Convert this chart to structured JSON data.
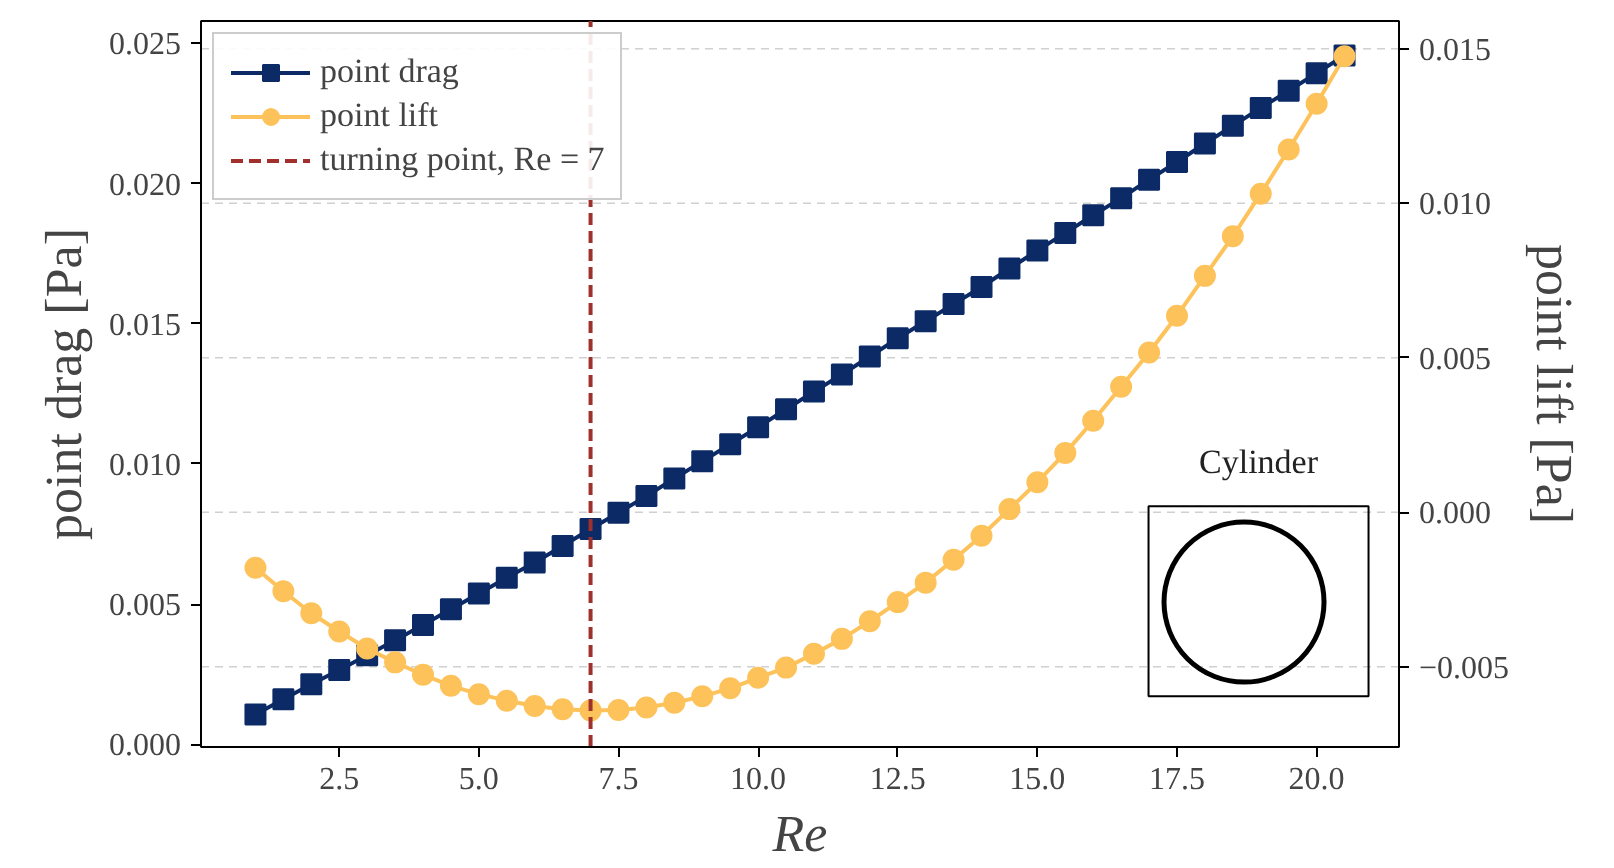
{
  "chart_data": {
    "type": "line",
    "xlabel": "Re",
    "ylabel": "point drag [Pa]",
    "y2label": "point lift [Pa]",
    "x": [
      1.0,
      1.5,
      2.0,
      2.5,
      3.0,
      3.5,
      4.0,
      4.5,
      5.0,
      5.5,
      6.0,
      6.5,
      7.0,
      7.5,
      8.0,
      8.5,
      9.0,
      9.5,
      10.0,
      10.5,
      11.0,
      11.5,
      12.0,
      12.5,
      13.0,
      13.5,
      14.0,
      14.5,
      15.0,
      15.5,
      16.0,
      16.5,
      17.0,
      17.5,
      18.0,
      18.5,
      19.0,
      19.5,
      20.0,
      20.5
    ],
    "series": [
      {
        "name": "point drag",
        "color": "#0b2a66",
        "marker": "square",
        "values": [
          0.00106,
          0.0016,
          0.00214,
          0.00265,
          0.00317,
          0.00371,
          0.00425,
          0.00481,
          0.00538,
          0.00594,
          0.00648,
          0.00707,
          0.00768,
          0.00826,
          0.00885,
          0.00948,
          0.01009,
          0.0107,
          0.01131,
          0.01195,
          0.01258,
          0.01319,
          0.01383,
          0.01448,
          0.01509,
          0.0157,
          0.01631,
          0.01697,
          0.01761,
          0.01824,
          0.01887,
          0.01948,
          0.02014,
          0.02077,
          0.02143,
          0.02206,
          0.0227,
          0.02331,
          0.02394,
          0.02457
        ]
      },
      {
        "name": "point lift",
        "color": "#fdc25a",
        "marker": "circle",
        "axis": "y2",
        "values": [
          -0.0018,
          -0.00256,
          -0.00327,
          -0.00386,
          -0.00441,
          -0.00486,
          -0.00526,
          -0.00562,
          -0.00589,
          -0.0061,
          -0.00627,
          -0.00638,
          -0.00642,
          -0.0064,
          -0.00632,
          -0.00617,
          -0.00596,
          -0.0057,
          -0.00536,
          -0.00503,
          -0.00458,
          -0.0041,
          -0.00353,
          -0.00291,
          -0.00228,
          -0.00154,
          -0.00076,
          0.0001,
          0.00097,
          0.00192,
          0.00296,
          0.00406,
          0.00517,
          0.00636,
          0.00765,
          0.00893,
          0.01031,
          0.01174,
          0.01322,
          0.01476
        ]
      }
    ],
    "ref_lines": [
      {
        "axis": "x",
        "value": 7,
        "label": "turning point, Re = 7",
        "color": "#a0302c",
        "line_style": "dashed"
      }
    ],
    "xlim": [
      0.025,
      21.475
    ],
    "xticks": [
      2.5,
      {
        "value": 5,
        "label": "5.0"
      },
      7.5,
      {
        "value": 10,
        "label": "10.0"
      },
      12.5,
      {
        "value": 15,
        "label": "15.0"
      },
      17.5,
      {
        "value": 20,
        "label": "20.0"
      }
    ],
    "ylim": [
      -0.0001,
      0.0258
    ],
    "yticks": [
      {
        "value": 0,
        "label": "0.000"
      },
      0.005,
      {
        "value": 0.01,
        "label": "0.010"
      },
      0.015,
      {
        "value": 0.02,
        "label": "0.020"
      },
      0.025
    ],
    "y2lim": [
      -0.0076,
      0.0159
    ],
    "y2ticks": [
      {
        "value": -0.005,
        "label": "−0.005"
      },
      {
        "value": 0,
        "label": "0.000"
      },
      0.005,
      {
        "value": 0.01,
        "label": "0.010"
      },
      0.015
    ],
    "grid": "y",
    "legend": "top left",
    "annotations": [
      "Cylinder"
    ]
  }
}
